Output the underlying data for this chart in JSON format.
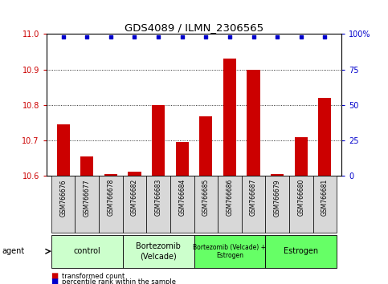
{
  "title": "GDS4089 / ILMN_2306565",
  "samples": [
    "GSM766676",
    "GSM766677",
    "GSM766678",
    "GSM766682",
    "GSM766683",
    "GSM766684",
    "GSM766685",
    "GSM766686",
    "GSM766687",
    "GSM766679",
    "GSM766680",
    "GSM766681"
  ],
  "bar_values": [
    10.745,
    10.655,
    10.605,
    10.612,
    10.8,
    10.695,
    10.768,
    10.93,
    10.9,
    10.605,
    10.71,
    10.82
  ],
  "percentile_values": [
    98,
    98,
    98,
    98,
    98,
    98,
    98,
    98,
    98,
    98,
    98,
    98
  ],
  "bar_color": "#cc0000",
  "percentile_color": "#0000cc",
  "ylim_left": [
    10.6,
    11.0
  ],
  "ylim_right": [
    0,
    100
  ],
  "yticks_left": [
    10.6,
    10.7,
    10.8,
    10.9,
    11.0
  ],
  "yticks_right": [
    0,
    25,
    50,
    75,
    100
  ],
  "ytick_labels_right": [
    "0",
    "25",
    "50",
    "75",
    "100%"
  ],
  "groups": [
    {
      "label": "control",
      "start": 0,
      "end": 3,
      "color": "#ccffcc"
    },
    {
      "label": "Bortezomib\n(Velcade)",
      "start": 3,
      "end": 6,
      "color": "#ccffcc"
    },
    {
      "label": "Bortezomib (Velcade) +\nEstrogen",
      "start": 6,
      "end": 9,
      "color": "#66ff66"
    },
    {
      "label": "Estrogen",
      "start": 9,
      "end": 12,
      "color": "#66ff66"
    }
  ],
  "agent_label": "agent",
  "legend_items": [
    {
      "color": "#cc0000",
      "label": "transformed count"
    },
    {
      "color": "#0000cc",
      "label": "percentile rank within the sample"
    }
  ],
  "bar_width": 0.55,
  "background_color": "#ffffff",
  "plot_bg_color": "#ffffff",
  "sample_box_color": "#d8d8d8",
  "tick_color_left": "#cc0000",
  "tick_color_right": "#0000cc",
  "grid_yticks": [
    10.7,
    10.8,
    10.9
  ]
}
